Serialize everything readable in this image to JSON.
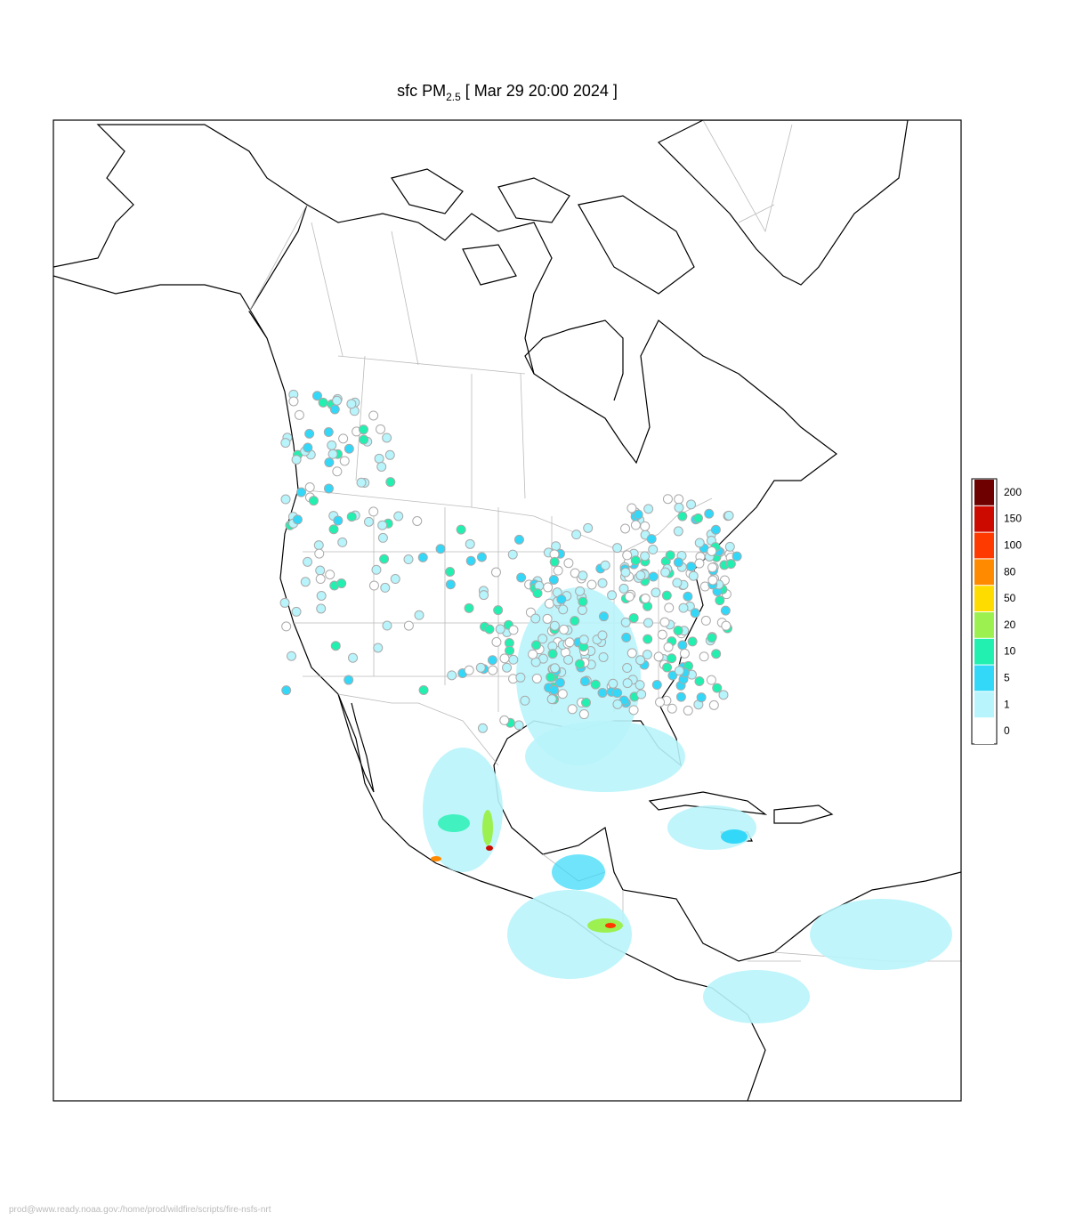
{
  "header": {
    "title": {
      "prefix": "sfc PM",
      "subscript": "2.5",
      "suffix": "[ Mar 29 20:00 2024 ]"
    }
  },
  "legend": {
    "levels": [
      0,
      1,
      5,
      10,
      20,
      50,
      80,
      100,
      150,
      200
    ],
    "colors": [
      "#ffffff",
      "#b8f4fb",
      "#33d8f8",
      "#22f0b0",
      "#9cf050",
      "#ffdc00",
      "#ff8a00",
      "#ff3a00",
      "#cc0a00",
      "#6e0000"
    ]
  },
  "footer": {
    "text": "prod@www.ready.noaa.gov:/home/prod/wildfire/scripts/fire-nsfs-nrt"
  }
}
